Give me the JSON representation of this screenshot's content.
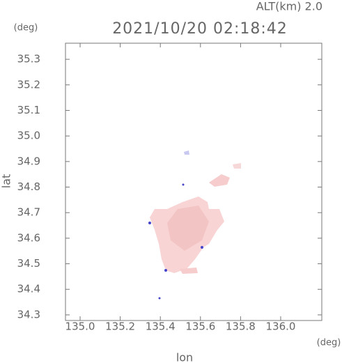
{
  "chart_data": {
    "type": "map",
    "title": "2021/10/20 02:18:42",
    "altitude_label": "ALT(km) 2.0",
    "xlabel": "lon",
    "ylabel": "lat",
    "xunit": "(deg)",
    "yunit": "(deg)",
    "xlim": [
      134.927,
      136.205
    ],
    "ylim": [
      34.278,
      35.363
    ],
    "xticks": [
      {
        "value": 135,
        "label": "135.0"
      },
      135.2,
      135.4,
      135.6,
      135.8,
      {
        "value": 136,
        "label": "136.0"
      }
    ],
    "yticks": [
      34.3,
      34.4,
      34.5,
      34.6,
      34.7,
      34.8,
      34.9,
      {
        "value": 35,
        "label": "35.0"
      },
      35.1,
      35.2,
      35.3
    ]
  }
}
